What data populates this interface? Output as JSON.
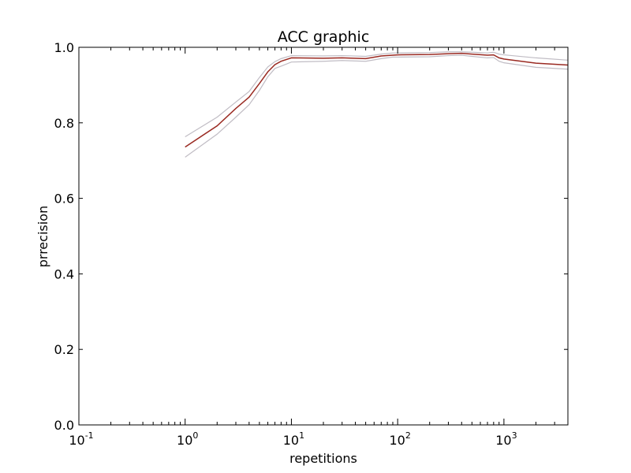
{
  "chart_data": {
    "type": "line",
    "title": "ACC graphic",
    "xlabel": "repetitions",
    "ylabel": "prrecision",
    "xscale": "log",
    "xlim": [
      0.1,
      4000
    ],
    "ylim": [
      0.0,
      1.0
    ],
    "grid": false,
    "legend": "none",
    "x_ticks": [
      {
        "value": 0.1,
        "base": "10",
        "exp": "-1"
      },
      {
        "value": 1,
        "base": "10",
        "exp": "0"
      },
      {
        "value": 10,
        "base": "10",
        "exp": "1"
      },
      {
        "value": 100,
        "base": "10",
        "exp": "2"
      },
      {
        "value": 1000,
        "base": "10",
        "exp": "3"
      }
    ],
    "y_ticks": [
      {
        "value": 0.0,
        "label": "0.0"
      },
      {
        "value": 0.2,
        "label": "0.2"
      },
      {
        "value": 0.4,
        "label": "0.4"
      },
      {
        "value": 0.6,
        "label": "0.6"
      },
      {
        "value": 0.8,
        "label": "0.8"
      },
      {
        "value": 1.0,
        "label": "1.0"
      }
    ],
    "x": [
      1,
      2,
      3,
      4,
      5,
      6,
      7,
      8,
      10,
      20,
      30,
      50,
      70,
      90,
      100,
      200,
      300,
      400,
      500,
      700,
      800,
      900,
      1000,
      2000,
      4000
    ],
    "series": [
      {
        "role": "upper",
        "color": "#c0bcc4",
        "values": [
          0.763,
          0.815,
          0.855,
          0.883,
          0.92,
          0.948,
          0.962,
          0.97,
          0.978,
          0.977,
          0.978,
          0.976,
          0.982,
          0.985,
          0.985,
          0.986,
          0.988,
          0.988,
          0.987,
          0.985,
          0.987,
          0.982,
          0.98,
          0.972,
          0.966
        ]
      },
      {
        "role": "mean",
        "color": "#9a2a22",
        "values": [
          0.736,
          0.792,
          0.838,
          0.868,
          0.904,
          0.935,
          0.954,
          0.963,
          0.972,
          0.971,
          0.972,
          0.97,
          0.977,
          0.979,
          0.98,
          0.981,
          0.983,
          0.984,
          0.982,
          0.979,
          0.98,
          0.972,
          0.969,
          0.958,
          0.953
        ]
      },
      {
        "role": "lower",
        "color": "#c0bcc4",
        "values": [
          0.709,
          0.77,
          0.815,
          0.848,
          0.886,
          0.922,
          0.944,
          0.95,
          0.961,
          0.963,
          0.965,
          0.963,
          0.97,
          0.974,
          0.974,
          0.975,
          0.978,
          0.979,
          0.976,
          0.972,
          0.973,
          0.963,
          0.959,
          0.947,
          0.942
        ]
      }
    ]
  }
}
